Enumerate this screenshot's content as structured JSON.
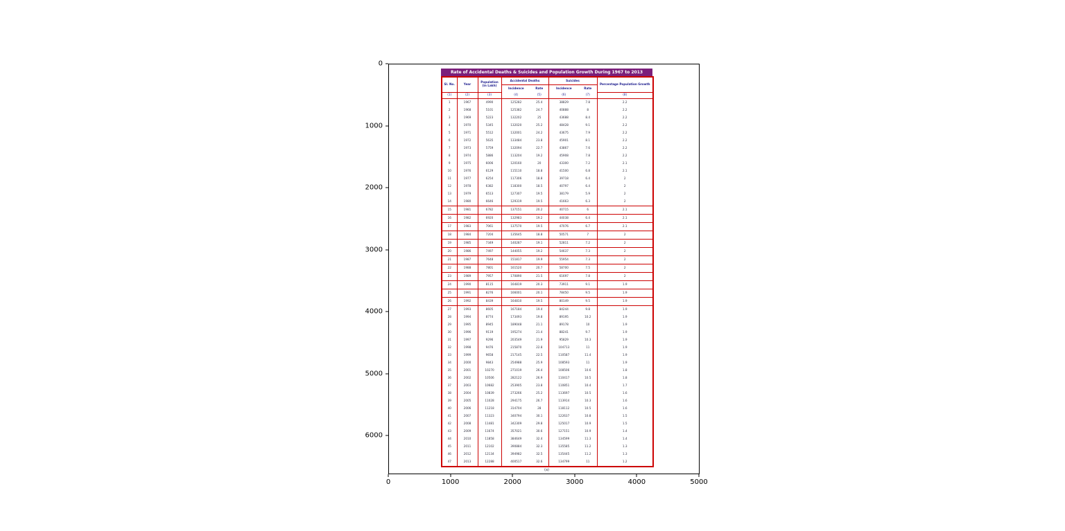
{
  "figure": {
    "x_ticks": [
      "0",
      "1000",
      "2000",
      "3000",
      "4000",
      "5000"
    ],
    "y_ticks": [
      "0",
      "1000",
      "2000",
      "3000",
      "4000",
      "5000",
      "6000"
    ]
  },
  "chart_data": {
    "type": "table",
    "title": "Rate of Accidental Deaths & Suicides and Population Growth During 1967 to 2013",
    "headers": {
      "sl_no": "Sl. No.",
      "year": "Year",
      "population": "Population (in Lakh)",
      "accidental_group": "Accidental Deaths",
      "suicides_group": "Suicides",
      "incidence": "Incidence",
      "rate": "Rate",
      "pct_growth": "Percentage Population Growth"
    },
    "col_numbers": [
      "(1)",
      "(2)",
      "(3)",
      "(4)",
      "(5)",
      "(6)",
      "(7)",
      "(8)"
    ],
    "footer": "(a)",
    "rows": [
      [
        1,
        1967,
        4990,
        125282,
        25.4,
        38829,
        7.8,
        2.2
      ],
      [
        2,
        1968,
        5101,
        125382,
        24.7,
        40888,
        8.0,
        2.2
      ],
      [
        3,
        1969,
        5223,
        132202,
        25.0,
        43688,
        8.4,
        2.2
      ],
      [
        4,
        1970,
        5345,
        132020,
        25.2,
        48428,
        9.1,
        2.2
      ],
      [
        5,
        1971,
        5512,
        132001,
        24.2,
        43675,
        7.9,
        2.2
      ],
      [
        6,
        1972,
        5635,
        133484,
        23.8,
        45901,
        8.1,
        2.2
      ],
      [
        7,
        1973,
        5759,
        132094,
        22.7,
        43867,
        7.6,
        2.2
      ],
      [
        8,
        1974,
        5886,
        113204,
        19.2,
        45908,
        7.8,
        2.2
      ],
      [
        9,
        1975,
        6006,
        120160,
        20.0,
        43300,
        7.2,
        2.1
      ],
      [
        10,
        1976,
        6129,
        115110,
        18.8,
        41500,
        6.8,
        2.1
      ],
      [
        11,
        1977,
        6254,
        117306,
        18.8,
        39718,
        6.4,
        2.0
      ],
      [
        12,
        1978,
        6382,
        118300,
        18.5,
        40797,
        6.4,
        2.0
      ],
      [
        13,
        1979,
        6513,
        127307,
        19.5,
        38179,
        5.9,
        2.0
      ],
      [
        14,
        1980,
        6646,
        129319,
        19.5,
        41663,
        6.3,
        2.0
      ],
      [
        15,
        1981,
        6782,
        137151,
        20.2,
        40715,
        6.0,
        2.1
      ],
      [
        16,
        1982,
        6920,
        132983,
        19.2,
        44038,
        6.4,
        2.1
      ],
      [
        17,
        1983,
        7061,
        137570,
        19.5,
        47076,
        6.7,
        2.1
      ],
      [
        18,
        1984,
        7204,
        135645,
        18.8,
        50571,
        7.0,
        2.0
      ],
      [
        19,
        1985,
        7349,
        140287,
        19.1,
        52811,
        7.2,
        2.0
      ],
      [
        20,
        1986,
        7497,
        144055,
        19.2,
        54637,
        7.3,
        2.0
      ],
      [
        21,
        1987,
        7648,
        151817,
        19.9,
        55954,
        7.3,
        2.0
      ],
      [
        22,
        1988,
        7801,
        161520,
        20.7,
        58700,
        7.5,
        2.0
      ],
      [
        23,
        1989,
        7957,
        170890,
        21.5,
        61697,
        7.8,
        2.0
      ],
      [
        24,
        1990,
        8115,
        164819,
        20.3,
        73911,
        9.1,
        1.9
      ],
      [
        25,
        1991,
        8276,
        166001,
        20.1,
        78450,
        9.5,
        1.9
      ],
      [
        26,
        1992,
        8439,
        164810,
        19.5,
        80149,
        9.5,
        1.9
      ],
      [
        27,
        1993,
        8605,
        167184,
        19.4,
        84244,
        9.8,
        1.9
      ],
      [
        28,
        1994,
        8774,
        173493,
        19.8,
        89195,
        10.2,
        1.9
      ],
      [
        29,
        1995,
        8945,
        189048,
        21.1,
        89178,
        10.0,
        1.9
      ],
      [
        30,
        1996,
        9119,
        195274,
        21.4,
        88241,
        9.7,
        1.9
      ],
      [
        31,
        1997,
        9296,
        203549,
        21.9,
        95829,
        10.3,
        1.9
      ],
      [
        32,
        1998,
        9476,
        215870,
        22.8,
        104713,
        11.0,
        1.9
      ],
      [
        33,
        1999,
        9658,
        217145,
        22.5,
        110587,
        11.4,
        1.9
      ],
      [
        34,
        2000,
        9843,
        254988,
        25.9,
        108593,
        11.0,
        1.9
      ],
      [
        35,
        2001,
        10270,
        271019,
        26.4,
        108506,
        10.6,
        1.8
      ],
      [
        36,
        2002,
        10506,
        282122,
        26.9,
        110417,
        10.5,
        1.8
      ],
      [
        37,
        2003,
        10682,
        253905,
        23.8,
        110851,
        10.4,
        1.7
      ],
      [
        38,
        2004,
        10839,
        273266,
        25.2,
        113697,
        10.5,
        1.6
      ],
      [
        39,
        2005,
        11028,
        294175,
        26.7,
        113914,
        10.3,
        1.6
      ],
      [
        40,
        2006,
        11218,
        314704,
        28.0,
        118112,
        10.5,
        1.6
      ],
      [
        41,
        2007,
        11323,
        340794,
        30.1,
        122637,
        10.8,
        1.5
      ],
      [
        42,
        2008,
        11481,
        342309,
        29.8,
        125017,
        10.9,
        1.5
      ],
      [
        43,
        2009,
        11674,
        357021,
        30.6,
        127151,
        10.9,
        1.4
      ],
      [
        44,
        2010,
        11858,
        384649,
        32.4,
        134599,
        11.3,
        1.4
      ],
      [
        45,
        2011,
        12102,
        390884,
        32.3,
        135585,
        11.2,
        1.3
      ],
      [
        46,
        2012,
        12134,
        394982,
        32.5,
        135445,
        11.2,
        1.3
      ],
      [
        47,
        2013,
        12288,
        400517,
        32.6,
        134799,
        11.0,
        1.2
      ]
    ]
  }
}
